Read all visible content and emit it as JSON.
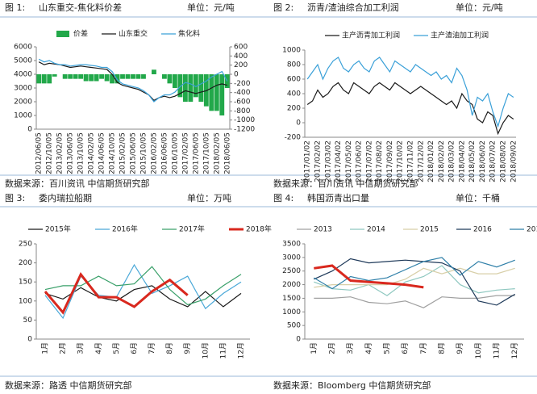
{
  "chart_data": [
    {
      "type": "line",
      "figure": "图 1:",
      "title": "山东重交-焦化料价差",
      "unit": "单位：元/吨",
      "source": "数据来源：百川资讯  中信期货研究部",
      "categories": [
        "2012/06/05",
        null,
        "2012/10/05",
        null,
        "2013/02/05",
        null,
        "2013/06/05",
        null,
        "2013/10/05",
        null,
        "2014/02/05",
        null,
        "2014/06/05",
        null,
        "2014/10/05",
        null,
        "2015/02/05",
        null,
        "2015/06/05",
        null,
        "2015/10/05",
        null,
        "2016/02/05",
        null,
        "2016/06/05",
        null,
        "2016/10/05",
        null,
        "2017/02/05",
        null,
        "2017/06/05",
        null,
        "2017/10/05",
        null,
        "2018/02/05",
        null,
        "2018/06/05"
      ],
      "ylim": [
        0,
        6000
      ],
      "yticks": [
        0,
        1000,
        2000,
        3000,
        4000,
        5000,
        6000
      ],
      "y2lim": [
        -1200,
        600
      ],
      "y2ticks": [
        -1200,
        -1000,
        -800,
        -600,
        -400,
        -200,
        0,
        200,
        400,
        600
      ],
      "series": [
        {
          "name": "价差",
          "type": "bar",
          "axis": "y2",
          "color": "#22a84a",
          "values": [
            -200,
            -200,
            -200,
            -50,
            0,
            -100,
            -100,
            -100,
            -100,
            -150,
            -150,
            -150,
            -100,
            -150,
            -200,
            -200,
            -100,
            -100,
            -100,
            -100,
            -100,
            0,
            100,
            0,
            -100,
            -200,
            -300,
            -500,
            -600,
            -600,
            -500,
            -600,
            -700,
            -800,
            -800,
            -900,
            -300
          ]
        },
        {
          "name": "山东重交",
          "color": "#1a1a1a",
          "values": [
            4900,
            4700,
            4800,
            4750,
            4700,
            4600,
            4500,
            4550,
            4600,
            4550,
            4500,
            4450,
            4400,
            4350,
            4000,
            3400,
            3200,
            3100,
            3000,
            2900,
            2700,
            2500,
            2100,
            2300,
            2400,
            2300,
            2400,
            2600,
            2800,
            2700,
            2600,
            2700,
            2800,
            3000,
            3200,
            3300,
            3200
          ]
        },
        {
          "name": "焦化料",
          "color": "#3aa0d8",
          "values": [
            5100,
            4900,
            5000,
            4800,
            4700,
            4700,
            4600,
            4650,
            4700,
            4700,
            4650,
            4600,
            4500,
            4500,
            4200,
            3600,
            3300,
            3200,
            3100,
            3000,
            2800,
            2500,
            2000,
            2300,
            2500,
            2500,
            2700,
            3100,
            3400,
            3300,
            3100,
            3300,
            3500,
            3800,
            4000,
            4200,
            3500
          ]
        }
      ]
    },
    {
      "type": "line",
      "figure": "图 2:",
      "title": "沥青/渣油综合加工利润",
      "unit": "单位：元/吨",
      "source": "数据来源：百川资讯  中信期货研究部",
      "categories": [
        "2017/01/02",
        null,
        "2017/02/02",
        null,
        "2017/03/02",
        null,
        "2017/04/02",
        null,
        "2017/05/02",
        null,
        "2017/06/02",
        null,
        "2017/07/02",
        null,
        "2017/08/02",
        null,
        "2017/09/02",
        null,
        "2017/10/02",
        null,
        "2017/11/02",
        null,
        "2017/12/02",
        null,
        "2018/01/02",
        null,
        "2018/02/02",
        null,
        "2018/03/02",
        null,
        "2018/04/02",
        null,
        "2018/05/02",
        null,
        "2018/06/02",
        null,
        "2018/07/02",
        null,
        "2018/08/02",
        null,
        "2018/09/02"
      ],
      "ylim": [
        -200,
        1000
      ],
      "yticks": [
        -200,
        0,
        200,
        400,
        600,
        800,
        1000
      ],
      "series": [
        {
          "name": "主产沥青加工利润",
          "color": "#1a1a1a",
          "values": [
            250,
            300,
            450,
            350,
            400,
            500,
            550,
            450,
            400,
            550,
            500,
            450,
            400,
            500,
            550,
            500,
            450,
            550,
            500,
            450,
            400,
            450,
            500,
            450,
            400,
            350,
            300,
            250,
            300,
            200,
            400,
            300,
            250,
            50,
            0,
            150,
            100,
            -150,
            0,
            100,
            50
          ]
        },
        {
          "name": "主产渣油加工利润",
          "color": "#3aa0d8",
          "values": [
            600,
            700,
            800,
            600,
            750,
            850,
            900,
            750,
            700,
            800,
            850,
            750,
            700,
            850,
            900,
            800,
            700,
            850,
            800,
            750,
            700,
            800,
            750,
            700,
            650,
            700,
            600,
            650,
            550,
            750,
            650,
            450,
            100,
            350,
            300,
            400,
            150,
            -50,
            200,
            400,
            350
          ]
        }
      ]
    },
    {
      "type": "line",
      "figure": "图 3:",
      "title": "委内瑞拉船期",
      "unit": "单位：万吨",
      "source": "数据来源：路透   中信期货研究部",
      "categories": [
        "1月",
        "2月",
        "3月",
        "4月",
        "5月",
        "6月",
        "7月",
        "8月",
        "9月",
        "10月",
        "11月",
        "12月"
      ],
      "ylim": [
        0,
        250
      ],
      "yticks": [
        0,
        50,
        100,
        150,
        200,
        250
      ],
      "series": [
        {
          "name": "2015年",
          "color": "#1a1a1a",
          "values": [
            120,
            105,
            135,
            110,
            100,
            130,
            140,
            105,
            85,
            125,
            85,
            120
          ]
        },
        {
          "name": "2016年",
          "color": "#4aa8d8",
          "values": [
            115,
            55,
            165,
            115,
            110,
            195,
            120,
            140,
            165,
            80,
            120,
            150
          ]
        },
        {
          "name": "2017年",
          "color": "#3aa06a",
          "values": [
            130,
            140,
            140,
            165,
            140,
            145,
            190,
            130,
            90,
            105,
            140,
            170
          ]
        },
        {
          "name": "2018年",
          "color": "#d9281e",
          "line_width": 3,
          "values": [
            125,
            70,
            170,
            110,
            110,
            85,
            125,
            155,
            115,
            null,
            null,
            null
          ]
        }
      ]
    },
    {
      "type": "line",
      "figure": "图 4:",
      "title": "韩国沥青出口量",
      "unit": "单位：千桶",
      "source": "数据来源：Bloomberg   中信期货研究部",
      "categories": [
        "1月",
        "2月",
        "3月",
        "4月",
        "5月",
        "6月",
        "7月",
        "8月",
        "9月",
        "10月",
        "11月",
        "12月"
      ],
      "ylim": [
        0,
        3500
      ],
      "yticks": [
        0,
        500,
        1000,
        1500,
        2000,
        2500,
        3000,
        3500
      ],
      "series": [
        {
          "name": "2013",
          "color": "#a0a0a0",
          "values": [
            1500,
            1500,
            1550,
            1350,
            1300,
            1400,
            1150,
            1550,
            1500,
            1500,
            1600,
            1600
          ]
        },
        {
          "name": "2014",
          "color": "#8fc8c0",
          "values": [
            2100,
            1850,
            1800,
            2000,
            1600,
            2100,
            2300,
            2700,
            2000,
            1700,
            1800,
            1850
          ]
        },
        {
          "name": "2015",
          "color": "#d8cfa8",
          "values": [
            1900,
            2000,
            2000,
            2000,
            2000,
            2200,
            2600,
            2400,
            2600,
            2400,
            2400,
            2600
          ]
        },
        {
          "name": "2016",
          "color": "#1f3a5a",
          "values": [
            2200,
            2500,
            2950,
            2800,
            2850,
            2900,
            2850,
            2800,
            2500,
            1400,
            1250,
            1650
          ]
        },
        {
          "name": "2017",
          "color": "#2e7fa8",
          "values": [
            2250,
            1850,
            2300,
            2150,
            2250,
            2550,
            2850,
            3000,
            2350,
            2850,
            2650,
            2900
          ]
        },
        {
          "name": "2018",
          "color": "#d9281e",
          "line_width": 3,
          "values": [
            2600,
            2700,
            2150,
            2100,
            2050,
            2000,
            1900,
            null,
            null,
            null,
            null,
            null
          ]
        }
      ]
    }
  ]
}
